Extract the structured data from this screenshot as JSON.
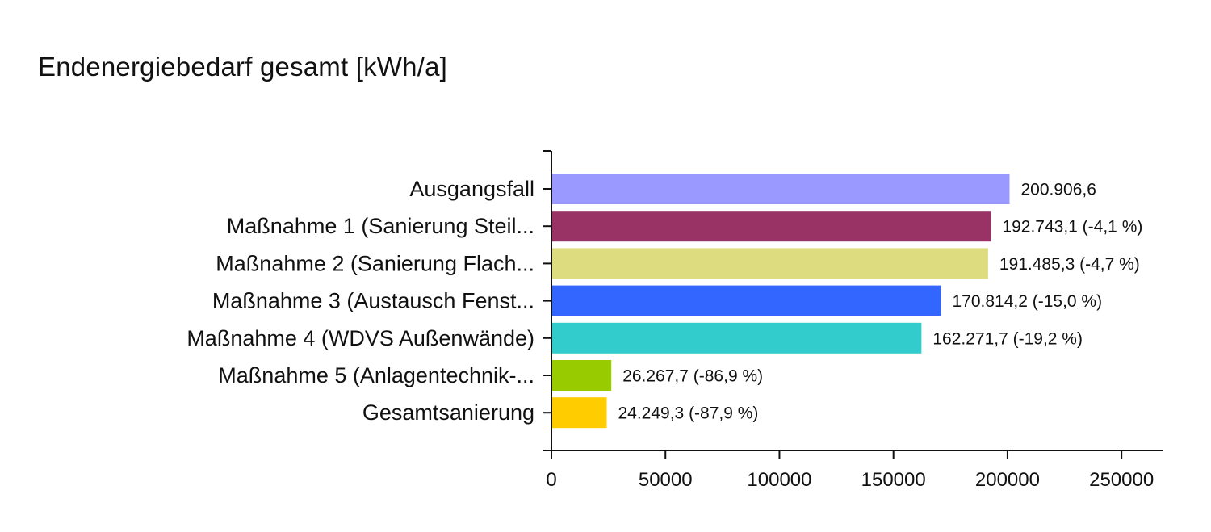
{
  "chart_data": {
    "type": "bar",
    "orientation": "horizontal",
    "title": "Endenergiebedarf gesamt [kWh/a]",
    "xlabel": "",
    "ylabel": "",
    "categories": [
      "Ausgangsfall",
      "Maßnahme 1 (Sanierung Steil...",
      "Maßnahme 2 (Sanierung Flach...",
      "Maßnahme 3 (Austausch Fenst...",
      "Maßnahme 4 (WDVS Außenwände)",
      "Maßnahme 5 (Anlagentechnik-...",
      "Gesamtsanierung"
    ],
    "values": [
      200906.6,
      192743.1,
      191485.3,
      170814.2,
      162271.7,
      26267.7,
      24249.3
    ],
    "data_labels": [
      "200.906,6",
      "192.743,1 (-4,1 %)",
      "191.485,3 (-4,7 %)",
      "170.814,2 (-15,0 %)",
      "162.271,7 (-19,2 %)",
      "26.267,7 (-86,9 %)",
      "24.249,3 (-87,9 %)"
    ],
    "colors": [
      "#9999ff",
      "#993366",
      "#dddd80",
      "#3366ff",
      "#33cccc",
      "#99cc00",
      "#ffcc00"
    ],
    "xlim": [
      0,
      268000
    ],
    "xticks": [
      0,
      50000,
      100000,
      150000,
      200000,
      250000
    ],
    "xtick_labels": [
      "0",
      "50000",
      "100000",
      "150000",
      "200000",
      "250000"
    ],
    "grid": false,
    "legend": "none"
  }
}
